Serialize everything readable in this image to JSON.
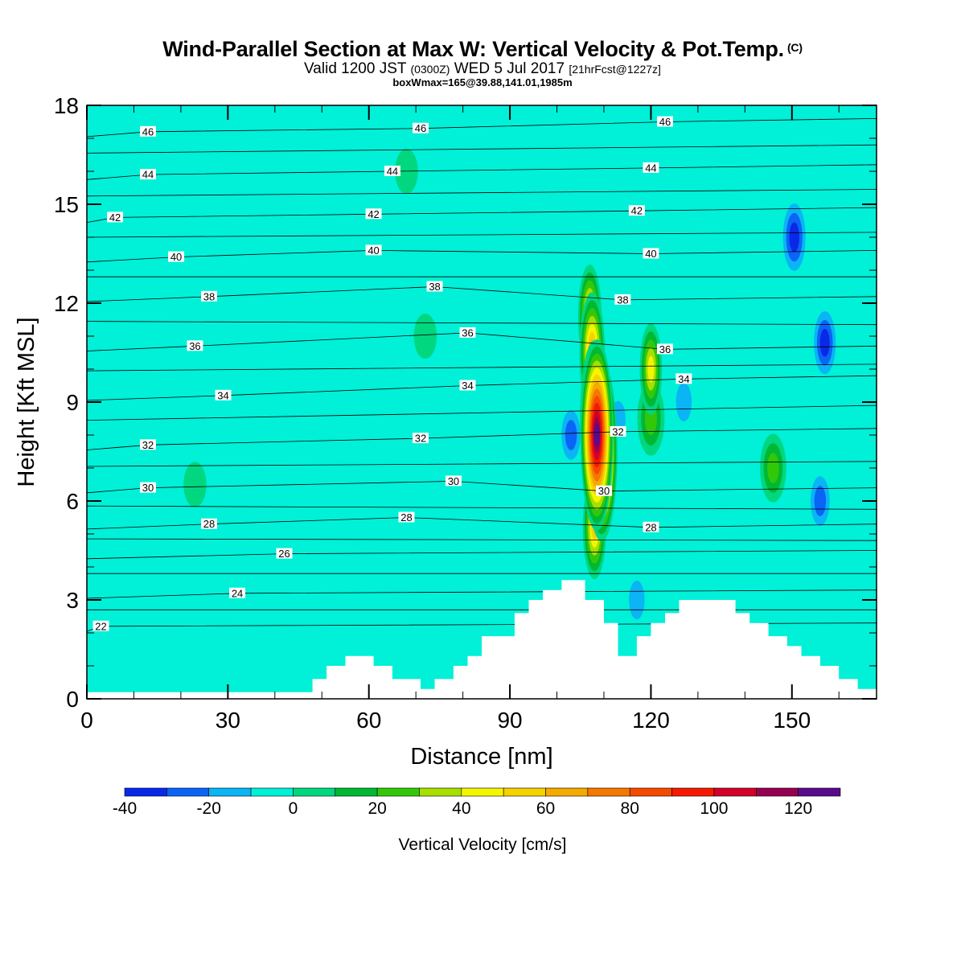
{
  "title": {
    "main": "Wind-Parallel Section at Max W: Vertical Velocity & Pot.Temp.",
    "main_suffix": "(C)",
    "valid_prefix": "Valid 1200 JST",
    "valid_utc": "(0300Z)",
    "valid_date": "WED 5 Jul 2017",
    "valid_fcst": "[21hrFcst@1227z]",
    "info": "boxWmax=165@39.88,141.01,1985m"
  },
  "chart_data": {
    "type": "heatmap",
    "xlabel": "Distance [nm]",
    "ylabel": "Height [Kft MSL]",
    "xlim": [
      0,
      168
    ],
    "ylim": [
      0,
      18
    ],
    "x_ticks": [
      0,
      30,
      60,
      90,
      120,
      150
    ],
    "y_ticks": [
      0,
      3,
      6,
      9,
      12,
      15,
      18
    ],
    "background_fill": "#00f0d8",
    "colorbar": {
      "label": "Vertical Velocity [cm/s]",
      "tick_values": [
        -40,
        -20,
        0,
        20,
        40,
        60,
        80,
        100,
        120
      ],
      "boundaries": [
        -40,
        -30,
        -20,
        -10,
        0,
        10,
        20,
        30,
        40,
        50,
        60,
        70,
        80,
        90,
        100,
        110,
        120,
        130
      ],
      "colors": [
        "#0a28e8",
        "#0a64f5",
        "#0ab4f5",
        "#00f0d8",
        "#00d77f",
        "#00b832",
        "#32c80a",
        "#a8df00",
        "#f5f500",
        "#f5d200",
        "#f5aa00",
        "#f57800",
        "#f54a00",
        "#f51a00",
        "#d2002a",
        "#960050",
        "#5a0a8c"
      ]
    },
    "velocity_features": [
      {
        "x": 108.5,
        "y": 8.0,
        "value": 130
      },
      {
        "x": 109.5,
        "y": 7.5,
        "value": 120
      },
      {
        "x": 108.0,
        "y": 8.5,
        "value": 100
      },
      {
        "x": 107.5,
        "y": 10.5,
        "value": 70
      },
      {
        "x": 107.0,
        "y": 11.6,
        "value": 55
      },
      {
        "x": 108.0,
        "y": 5.2,
        "value": 55
      },
      {
        "x": 120.0,
        "y": 10.0,
        "value": 45
      },
      {
        "x": 120.0,
        "y": 8.5,
        "value": 30
      },
      {
        "x": 146.0,
        "y": 7.0,
        "value": 25
      },
      {
        "x": 103.0,
        "y": 8.0,
        "value": -25
      },
      {
        "x": 113.0,
        "y": 8.5,
        "value": -15
      },
      {
        "x": 127.0,
        "y": 9.0,
        "value": -20
      },
      {
        "x": 117.0,
        "y": 3.0,
        "value": -20
      },
      {
        "x": 150.5,
        "y": 14.0,
        "value": -40
      },
      {
        "x": 157.0,
        "y": 10.8,
        "value": -35
      },
      {
        "x": 156.0,
        "y": 6.0,
        "value": -25
      },
      {
        "x": 23.0,
        "y": 6.5,
        "value": 5
      },
      {
        "x": 72.0,
        "y": 11.0,
        "value": 5
      },
      {
        "x": 68.0,
        "y": 16.0,
        "value": 5
      }
    ],
    "terrain": [
      [
        0,
        0.2
      ],
      [
        48,
        0.2
      ],
      [
        48,
        0.6
      ],
      [
        51,
        0.6
      ],
      [
        51,
        1.0
      ],
      [
        55,
        1.0
      ],
      [
        55,
        1.3
      ],
      [
        61,
        1.3
      ],
      [
        61,
        1.0
      ],
      [
        65,
        1.0
      ],
      [
        65,
        0.6
      ],
      [
        71,
        0.6
      ],
      [
        71,
        0.3
      ],
      [
        74,
        0.3
      ],
      [
        74,
        0.6
      ],
      [
        78,
        0.6
      ],
      [
        78,
        1.0
      ],
      [
        81,
        1.0
      ],
      [
        81,
        1.3
      ],
      [
        84,
        1.3
      ],
      [
        84,
        1.9
      ],
      [
        91,
        1.9
      ],
      [
        91,
        2.6
      ],
      [
        94,
        2.6
      ],
      [
        94,
        3.0
      ],
      [
        97,
        3.0
      ],
      [
        97,
        3.3
      ],
      [
        101,
        3.3
      ],
      [
        101,
        3.6
      ],
      [
        106,
        3.6
      ],
      [
        106,
        3.0
      ],
      [
        110,
        3.0
      ],
      [
        110,
        2.3
      ],
      [
        113,
        2.3
      ],
      [
        113,
        1.3
      ],
      [
        117,
        1.3
      ],
      [
        117,
        1.9
      ],
      [
        120,
        1.9
      ],
      [
        120,
        2.3
      ],
      [
        123,
        2.3
      ],
      [
        123,
        2.6
      ],
      [
        126,
        2.6
      ],
      [
        126,
        3.0
      ],
      [
        138,
        3.0
      ],
      [
        138,
        2.6
      ],
      [
        141,
        2.6
      ],
      [
        141,
        2.3
      ],
      [
        145,
        2.3
      ],
      [
        145,
        1.9
      ],
      [
        149,
        1.9
      ],
      [
        149,
        1.6
      ],
      [
        152,
        1.6
      ],
      [
        152,
        1.3
      ],
      [
        156,
        1.3
      ],
      [
        156,
        1.0
      ],
      [
        160,
        1.0
      ],
      [
        160,
        0.6
      ],
      [
        164,
        0.6
      ],
      [
        164,
        0.3
      ],
      [
        168,
        0.3
      ],
      [
        168,
        0
      ]
    ],
    "isentropes": {
      "labels": [
        {
          "text": "22",
          "x": 3,
          "y": 2.2
        },
        {
          "text": "24",
          "x": 32,
          "y": 3.2
        },
        {
          "text": "26",
          "x": 42,
          "y": 4.4
        },
        {
          "text": "28",
          "x": 26,
          "y": 5.3
        },
        {
          "text": "28",
          "x": 68,
          "y": 5.5
        },
        {
          "text": "28",
          "x": 120,
          "y": 5.2
        },
        {
          "text": "30",
          "x": 13,
          "y": 6.4
        },
        {
          "text": "30",
          "x": 78,
          "y": 6.6
        },
        {
          "text": "30",
          "x": 110,
          "y": 6.3
        },
        {
          "text": "32",
          "x": 13,
          "y": 7.7
        },
        {
          "text": "32",
          "x": 71,
          "y": 7.9
        },
        {
          "text": "32",
          "x": 113,
          "y": 8.1
        },
        {
          "text": "34",
          "x": 29,
          "y": 9.2
        },
        {
          "text": "34",
          "x": 81,
          "y": 9.5
        },
        {
          "text": "34",
          "x": 127,
          "y": 9.7
        },
        {
          "text": "36",
          "x": 23,
          "y": 10.7
        },
        {
          "text": "36",
          "x": 81,
          "y": 11.1
        },
        {
          "text": "36",
          "x": 123,
          "y": 10.6
        },
        {
          "text": "38",
          "x": 26,
          "y": 12.2
        },
        {
          "text": "38",
          "x": 74,
          "y": 12.5
        },
        {
          "text": "38",
          "x": 114,
          "y": 12.1
        },
        {
          "text": "40",
          "x": 19,
          "y": 13.4
        },
        {
          "text": "40",
          "x": 61,
          "y": 13.6
        },
        {
          "text": "40",
          "x": 120,
          "y": 13.5
        },
        {
          "text": "42",
          "x": 6,
          "y": 14.6
        },
        {
          "text": "42",
          "x": 61,
          "y": 14.7
        },
        {
          "text": "42",
          "x": 117,
          "y": 14.8
        },
        {
          "text": "44",
          "x": 13,
          "y": 15.9
        },
        {
          "text": "44",
          "x": 65,
          "y": 16.0
        },
        {
          "text": "44",
          "x": 120,
          "y": 16.1
        },
        {
          "text": "46",
          "x": 13,
          "y": 17.2
        },
        {
          "text": "46",
          "x": 71,
          "y": 17.3
        },
        {
          "text": "46",
          "x": 123,
          "y": 17.5
        }
      ]
    }
  }
}
